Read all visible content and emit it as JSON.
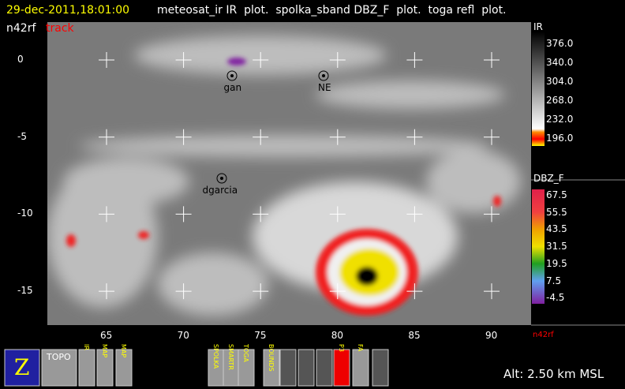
{
  "header": {
    "time": "29-dec-2011,18:01:00",
    "plots": "meteosat_ir IR  plot.  spolka_sband DBZ_F  plot.  toga refl  plot.",
    "aircraft": "n42rf",
    "track": "track"
  },
  "map": {
    "lat_labels": [
      "0",
      "-5",
      "-10",
      "-15"
    ],
    "lon_labels": [
      "65",
      "70",
      "75",
      "80",
      "85",
      "90"
    ],
    "stations": [
      {
        "label": "gan"
      },
      {
        "label": "NE"
      },
      {
        "label": "dgarcia"
      }
    ]
  },
  "colorbars": [
    {
      "title": "IR",
      "labels": [
        "376.0",
        "340.0",
        "304.0",
        "268.0",
        "232.0",
        "196.0"
      ]
    },
    {
      "title": "DBZ_F",
      "labels": [
        "67.5",
        "55.5",
        "43.5",
        "31.5",
        "19.5",
        "7.5",
        "-4.5"
      ]
    }
  ],
  "aircraft_label": "n42rf",
  "toolbar": {
    "buttons": [
      "Z",
      "TOPO",
      "IR",
      "MAP",
      "MAP",
      "SPOLKA",
      "SMARTR",
      "TOGA",
      "BOUNDS",
      "P3",
      "FA"
    ]
  },
  "status": "Alt: 2.50 km MSL"
}
